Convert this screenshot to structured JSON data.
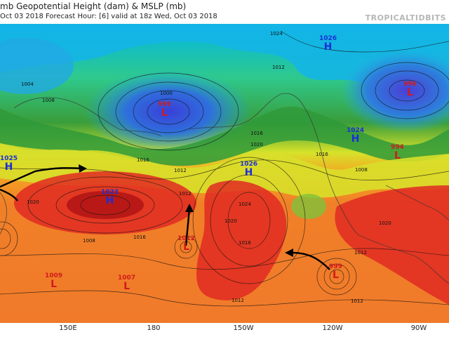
{
  "header": {
    "title": "mb Geopotential Height (dam) & MSLP (mb)",
    "subtitle": "Oct 03 2018    Forecast Hour: [6]    valid at 18z Wed, Oct 03 2018",
    "brand": "TROPICALTIDBITS"
  },
  "axis": {
    "ticks": [
      "150E",
      "180",
      "150W",
      "120W",
      "90W"
    ]
  },
  "systems": [
    {
      "id": "low-959",
      "type": "L",
      "value": "959"
    },
    {
      "id": "high-1026-east",
      "type": "H",
      "value": "1026"
    },
    {
      "id": "low-996",
      "type": "L",
      "value": "996"
    },
    {
      "id": "high-1024",
      "type": "H",
      "value": "1024"
    },
    {
      "id": "low-994",
      "type": "L",
      "value": "994"
    },
    {
      "id": "high-1023",
      "type": "H",
      "value": "1023"
    },
    {
      "id": "high-1026-central",
      "type": "H",
      "value": "1026"
    },
    {
      "id": "low-central-pacific",
      "type": "L",
      "value": "1012"
    },
    {
      "id": "low-east-pacific",
      "type": "L",
      "value": "999"
    },
    {
      "id": "low-1009",
      "type": "L",
      "value": "1009"
    },
    {
      "id": "low-1007",
      "type": "L",
      "value": "1007"
    },
    {
      "id": "high-1025-west",
      "type": "H",
      "value": "1025"
    }
  ],
  "isobar_labels": [
    "1024",
    "1016",
    "1012",
    "1008",
    "1020",
    "1004",
    "1000",
    "1012",
    "1016",
    "1020",
    "1012",
    "1016",
    "1008",
    "1016",
    "1012",
    "1020",
    "1024",
    "1012",
    "1016",
    "1012",
    "1008",
    "1020"
  ],
  "colors": {
    "high_label": "#1a2fd6",
    "low_label": "#d11a1a",
    "arrow": "#000000"
  }
}
